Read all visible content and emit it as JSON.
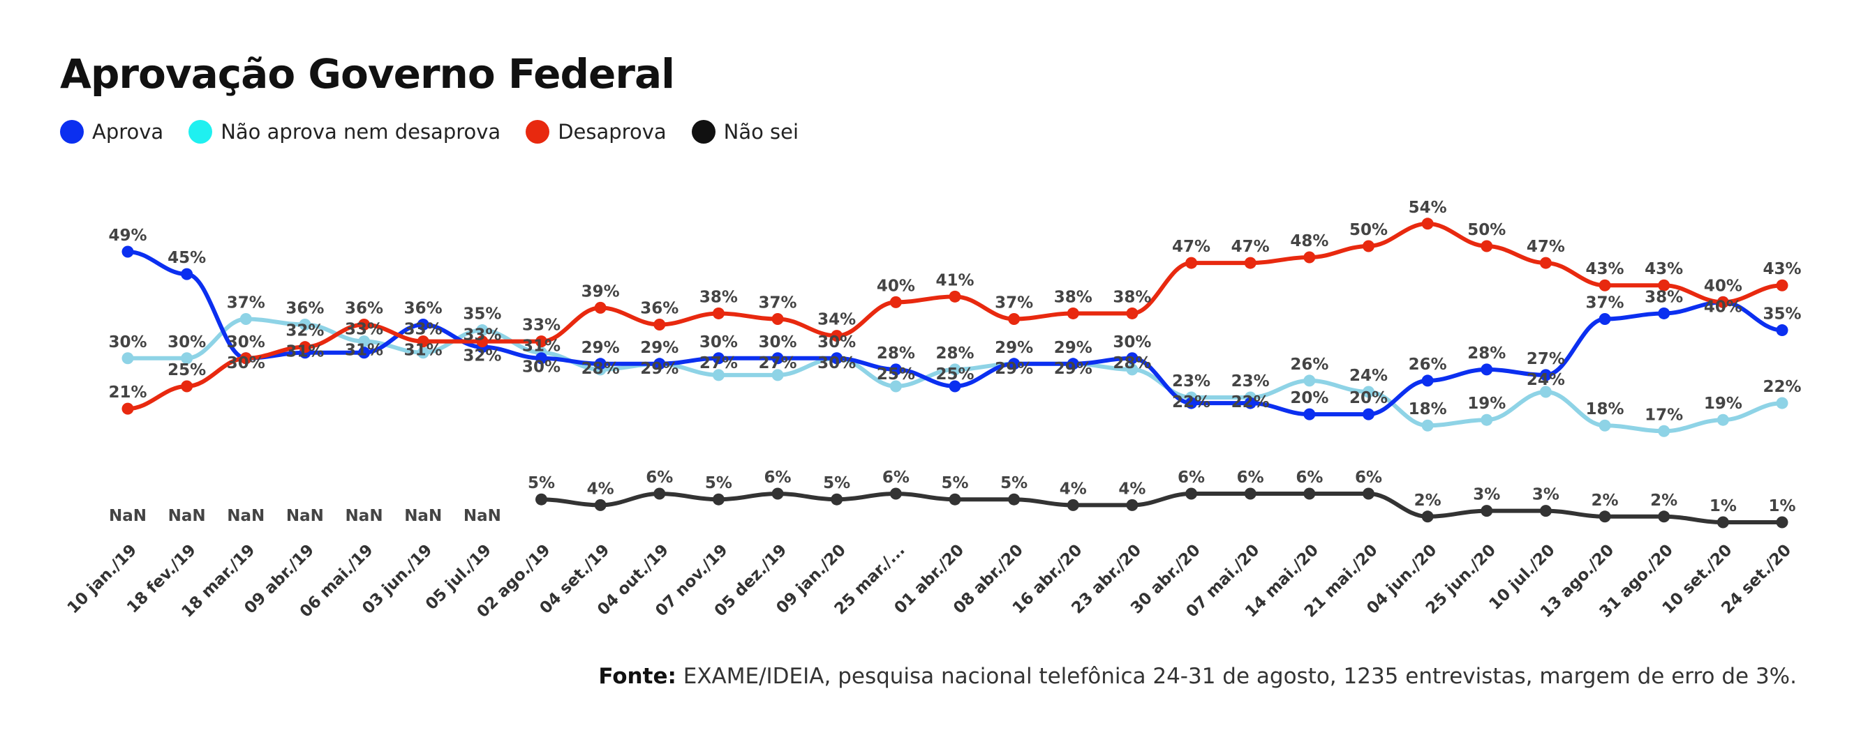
{
  "chart_data": {
    "type": "line",
    "title": "Aprovação Governo Federal",
    "categories": [
      "10 jan./19",
      "18 fev./19",
      "18 mar./19",
      "09 abr./19",
      "06 mai./19",
      "03 jun./19",
      "05 jul./19",
      "02 ago./19",
      "04 set./19",
      "04 out./19",
      "07 nov./19",
      "05 dez./19",
      "09 jan./20",
      "25 mar./...",
      "01 abr./20",
      "08 abr./20",
      "16 abr./20",
      "23 abr./20",
      "30 abr./20",
      "07 mai./20",
      "14 mai./20",
      "21 mai./20",
      "04 jun./20",
      "25 jun./20",
      "10 jul./20",
      "13 ago./20",
      "31 ago./20",
      "10 set./20",
      "24 set./20"
    ],
    "unit": "%",
    "legend_position": "top-left",
    "grid": false,
    "series": [
      {
        "name": "Aprova",
        "color": "#0b2ff0",
        "values": [
          49,
          45,
          30,
          31,
          31,
          36,
          32,
          30,
          29,
          29,
          30,
          30,
          30,
          28,
          25,
          29,
          29,
          30,
          22,
          22,
          20,
          20,
          26,
          28,
          27,
          37,
          38,
          40,
          35
        ]
      },
      {
        "name": "Não aprova nem desaprova",
        "color": "#8ed3e6",
        "values": [
          30,
          30,
          37,
          36,
          33,
          31,
          35,
          31,
          28,
          29,
          27,
          27,
          30,
          25,
          28,
          29,
          29,
          28,
          23,
          23,
          26,
          24,
          18,
          19,
          24,
          18,
          17,
          19,
          22
        ]
      },
      {
        "name": "Desaprova",
        "color": "#e8290f",
        "values": [
          21,
          25,
          30,
          32,
          36,
          33,
          33,
          33,
          39,
          36,
          38,
          37,
          34,
          40,
          41,
          37,
          38,
          38,
          47,
          47,
          48,
          50,
          54,
          50,
          47,
          43,
          43,
          40,
          43
        ]
      },
      {
        "name": "Não sei",
        "color": "#333333",
        "values": [
          null,
          null,
          null,
          null,
          null,
          null,
          null,
          5,
          4,
          6,
          5,
          6,
          5,
          6,
          5,
          5,
          4,
          4,
          6,
          6,
          6,
          6,
          2,
          3,
          3,
          2,
          2,
          1,
          1
        ]
      }
    ],
    "missing_label": "NaN"
  },
  "source": {
    "label": "Fonte:",
    "text": " EXAME/IDEIA, pesquisa nacional telefônica 24-31 de agosto, 1235 entrevistas, margem de erro de 3%."
  }
}
